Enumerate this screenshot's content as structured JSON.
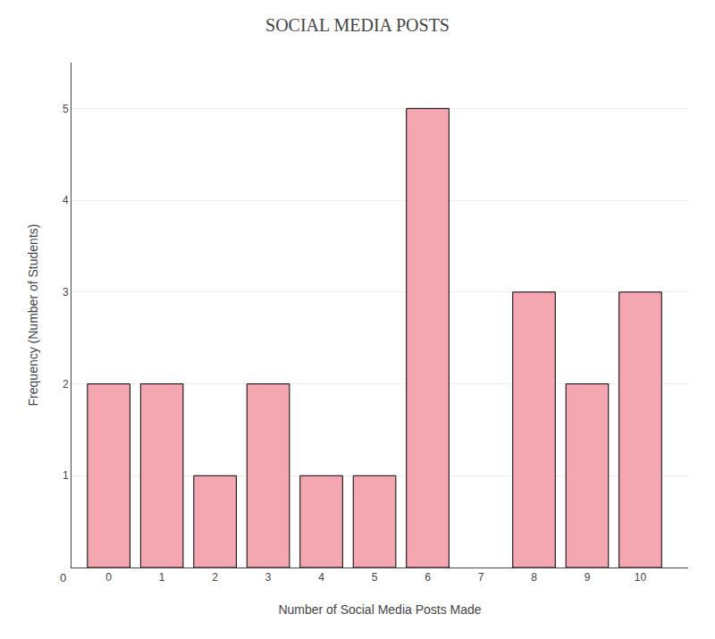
{
  "chart_data": {
    "type": "bar",
    "title": "SOCIAL MEDIA POSTS",
    "xlabel": "Number of Social Media Posts Made",
    "ylabel": "Frequency (Number of Students)",
    "categories": [
      0,
      1,
      2,
      3,
      4,
      5,
      6,
      7,
      8,
      9,
      10
    ],
    "values": [
      2,
      2,
      1,
      2,
      1,
      1,
      5,
      0,
      3,
      2,
      3
    ],
    "color": "#F4A7B0",
    "xlim": [
      -0.7,
      10.9
    ],
    "xticks": [
      0,
      1,
      2,
      3,
      4,
      5,
      6,
      7,
      8,
      9,
      10
    ],
    "ylim": [
      0,
      5.5
    ],
    "yticks": [
      1,
      2,
      3,
      4,
      5
    ],
    "grid": true,
    "annotations": [
      "0"
    ]
  }
}
